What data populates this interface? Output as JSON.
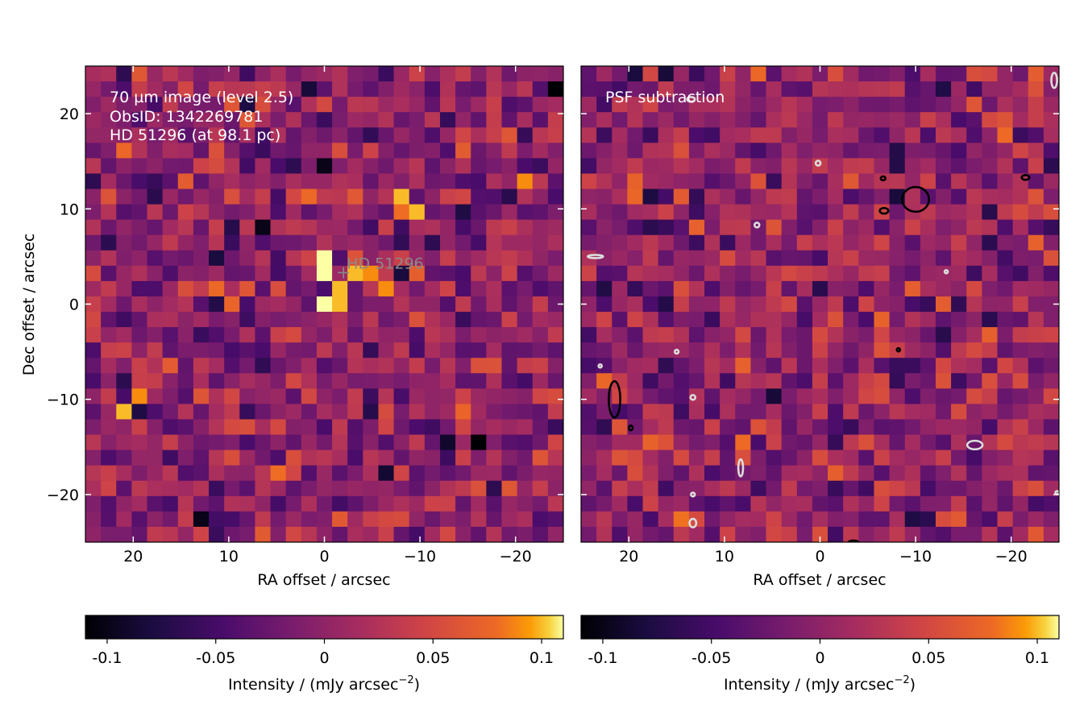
{
  "chart_data": [
    {
      "type": "heatmap",
      "title": "",
      "annotations": [
        "70 µm image (level 2.5)",
        "ObsID: 1342269781",
        "HD 51296 (at 98.1 pc)"
      ],
      "xlabel": "RA offset / arcsec",
      "ylabel": "Dec offset / arcsec",
      "xlim": [
        25,
        -25
      ],
      "ylim": [
        -25,
        25
      ],
      "xticks": [
        20,
        10,
        0,
        -10,
        -20
      ],
      "xtick_labels": [
        "20",
        "10",
        "0",
        "−10",
        "−20"
      ],
      "yticks": [
        20,
        10,
        0,
        -10,
        -20
      ],
      "ytick_labels": [
        "20",
        "10",
        "0",
        "−10",
        "−20"
      ],
      "star": {
        "label": "HD  51296",
        "ra": -2,
        "dec": 3.3
      },
      "pixel_grid": {
        "nx": 31,
        "ny": 31,
        "pixel_arcsec": 1.6
      },
      "bright_pixels": [
        {
          "ra": 0.5,
          "dec": 5.5,
          "value": 0.11
        },
        {
          "ra": 0.5,
          "dec": 4.0,
          "value": 0.11
        },
        {
          "ra": -1.0,
          "dec": 2.5,
          "value": 0.1
        },
        {
          "ra": 0.5,
          "dec": 0.0,
          "value": 0.11
        },
        {
          "ra": -1.0,
          "dec": 0.0,
          "value": 0.1
        },
        {
          "ra": -2.5,
          "dec": 4.0,
          "value": 0.1
        },
        {
          "ra": -4.0,
          "dec": 4.0,
          "value": 0.09
        },
        {
          "ra": -5.5,
          "dec": 2.5,
          "value": 0.09
        },
        {
          "ra": -8.5,
          "dec": 11.0,
          "value": 0.1
        },
        {
          "ra": -10.0,
          "dec": 9.5,
          "value": 0.1
        },
        {
          "ra": -7.0,
          "dec": 9.5,
          "value": 0.08
        },
        {
          "ra": 20.5,
          "dec": -11.0,
          "value": 0.1
        },
        {
          "ra": 19.0,
          "dec": -9.5,
          "value": 0.09
        },
        {
          "ra": -20.0,
          "dec": 12.5,
          "value": 0.09
        }
      ],
      "dark_pixels": [
        {
          "ra": -16.0,
          "dec": -14.0,
          "value": -0.11
        },
        {
          "ra": 13.0,
          "dec": -22.5,
          "value": -0.1
        },
        {
          "ra": 0.5,
          "dec": 14.0,
          "value": -0.1
        },
        {
          "ra": -23.5,
          "dec": 22.5,
          "value": -0.11
        },
        {
          "ra": 6.5,
          "dec": 8.0,
          "value": -0.1
        }
      ]
    },
    {
      "type": "heatmap",
      "title": "",
      "annotations": [
        "PSF subtraction"
      ],
      "xlabel": "RA offset / arcsec",
      "ylabel": "",
      "xlim": [
        25,
        -25
      ],
      "ylim": [
        -25,
        25
      ],
      "xticks": [
        20,
        10,
        0,
        -10,
        -20
      ],
      "xtick_labels": [
        "20",
        "10",
        "0",
        "−10",
        "−20"
      ],
      "yticks": [
        20,
        10,
        0,
        -10,
        -20
      ],
      "pixel_grid": {
        "nx": 31,
        "ny": 31,
        "pixel_arcsec": 1.6
      },
      "contours": [
        {
          "level": "positive",
          "color": "#000000",
          "shapes": [
            {
              "ra": -10,
              "dec": 11,
              "w": 2.8,
              "h": 2.6
            },
            {
              "ra": -6.7,
              "dec": 9.8,
              "w": 0.9,
              "h": 0.6
            },
            {
              "ra": -6.6,
              "dec": 13.2,
              "w": 0.5,
              "h": 0.4
            },
            {
              "ra": -21.5,
              "dec": 13.3,
              "w": 0.8,
              "h": 0.5
            },
            {
              "ra": 21.5,
              "dec": -10,
              "w": 1.2,
              "h": 3.8
            },
            {
              "ra": 19.8,
              "dec": -13,
              "w": 0.4,
              "h": 0.5
            },
            {
              "ra": -8.2,
              "dec": -4.8,
              "w": 0.3,
              "h": 0.3
            },
            {
              "ra": -3.5,
              "dec": -25,
              "w": 1.0,
              "h": 0.3
            }
          ]
        },
        {
          "level": "negative",
          "color": "#dcdcdc",
          "shapes": [
            {
              "ra": 23.5,
              "dec": 5,
              "w": 1.6,
              "h": 0.3
            },
            {
              "ra": 13.5,
              "dec": 21.5,
              "w": 0.8,
              "h": 0.5
            },
            {
              "ra": 0.2,
              "dec": 14.8,
              "w": 0.5,
              "h": 0.5
            },
            {
              "ra": 6.6,
              "dec": 8.3,
              "w": 0.5,
              "h": 0.5
            },
            {
              "ra": -13.2,
              "dec": 3.4,
              "w": 0.2,
              "h": 0.2
            },
            {
              "ra": 15.0,
              "dec": -5.0,
              "w": 0.4,
              "h": 0.4
            },
            {
              "ra": 23.0,
              "dec": -6.5,
              "w": 0.2,
              "h": 0.2
            },
            {
              "ra": 13.3,
              "dec": -9.8,
              "w": 0.5,
              "h": 0.5
            },
            {
              "ra": 8.3,
              "dec": -17.2,
              "w": 0.5,
              "h": 1.8
            },
            {
              "ra": 13.3,
              "dec": -20.0,
              "w": 0.4,
              "h": 0.4
            },
            {
              "ra": 13.3,
              "dec": -23.0,
              "w": 0.7,
              "h": 0.9
            },
            {
              "ra": -16.2,
              "dec": -14.8,
              "w": 1.6,
              "h": 0.9
            },
            {
              "ra": -24.5,
              "dec": 23.5,
              "w": 0.6,
              "h": 1.6
            },
            {
              "ra": -24.8,
              "dec": -19.8,
              "w": 0.3,
              "h": 0.3
            }
          ]
        }
      ]
    }
  ],
  "colorbars": [
    {
      "label_main": "Intensity / (mJy arcsec",
      "label_sup": "−2",
      "label_end": ")",
      "min": -0.11,
      "max": 0.11,
      "colormap": "inferno",
      "ticks": [
        -0.1,
        -0.05,
        0,
        0.05,
        0.1
      ],
      "tick_labels": [
        "-0.1",
        "-0.05",
        "0",
        "0.05",
        "0.1"
      ]
    },
    {
      "label_main": "Intensity / (mJy arcsec",
      "label_sup": "−2",
      "label_end": ")",
      "min": -0.11,
      "max": 0.11,
      "colormap": "inferno",
      "ticks": [
        -0.1,
        -0.05,
        0,
        0.05,
        0.1
      ],
      "tick_labels": [
        "-0.1",
        "-0.05",
        "0",
        "0.05",
        "0.1"
      ]
    }
  ]
}
